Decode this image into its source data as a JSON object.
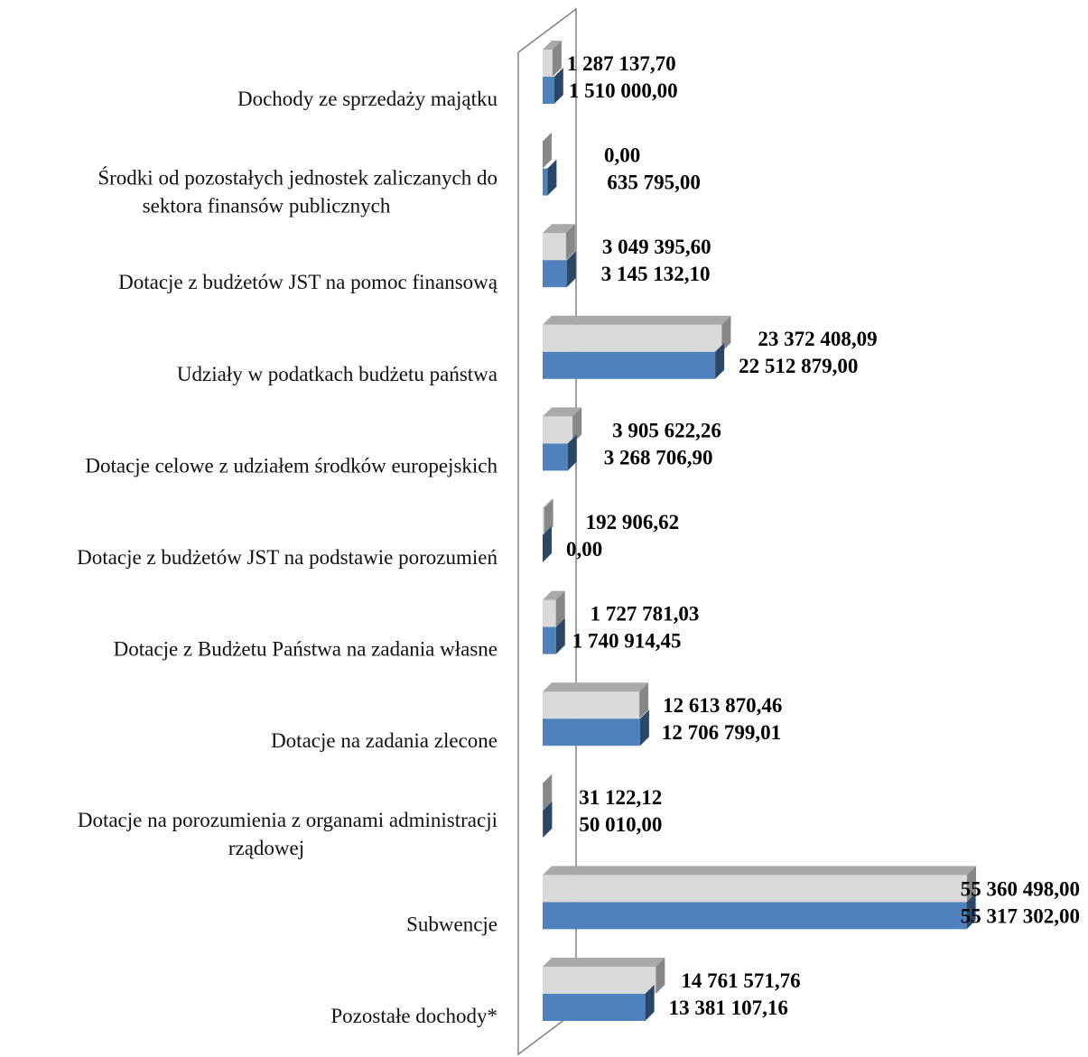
{
  "chart_data": {
    "type": "bar",
    "orientation": "horizontal",
    "style": "3d",
    "title": "",
    "xlabel": "",
    "ylabel": "",
    "grid": false,
    "legend": "none",
    "xlim": [
      0,
      55360498
    ],
    "categories": [
      [
        "Dochody ze sprzedaży majątku"
      ],
      [
        "Środki od pozostałych jednostek zaliczanych do",
        "sektora finansów publicznych"
      ],
      [
        "Dotacje z budżetów JST na pomoc finansową"
      ],
      [
        "Udziały w podatkach budżetu państwa"
      ],
      [
        "Dotacje celowe z udziałem środków europejskich"
      ],
      [
        "Dotacje z budżetów JST na podstawie porozumień"
      ],
      [
        "Dotacje z Budżetu Państwa na zadania własne"
      ],
      [
        "Dotacje na zadania zlecone"
      ],
      [
        "Dotacje na porozumienia z organami administracji",
        "rządowej"
      ],
      [
        "Subwencje"
      ],
      [
        "Pozostałe dochody*"
      ]
    ],
    "series": [
      {
        "color": "#d9d9d9",
        "values": [
          1287137.7,
          0.0,
          3049395.6,
          23372408.09,
          3905622.26,
          192906.62,
          1727781.03,
          12613870.46,
          31122.12,
          55360498.0,
          14761571.76
        ],
        "labels": [
          "1 287 137,70",
          "0,00",
          "3 049 395,60",
          "23 372 408,09",
          "3 905 622,26",
          "192 906,62",
          "1 727 781,03",
          "12 613 870,46",
          "31 122,12",
          "55 360 498,00",
          "14 761 571,76"
        ]
      },
      {
        "color": "#4f81bd",
        "values": [
          1510000.0,
          635795.0,
          3145132.1,
          22512879.0,
          3268706.9,
          0.0,
          1740914.45,
          12706799.01,
          50010.0,
          55317302.0,
          13381107.16
        ],
        "labels": [
          "1 510 000,00",
          "635 795,00",
          "3 145 132,10",
          "22 512 879,00",
          "3 268 706,90",
          "0,00",
          "1 740 914,45",
          "12 706 799,01",
          "50 010,00",
          "55 317 302,00",
          "13 381 107,16"
        ]
      }
    ]
  }
}
